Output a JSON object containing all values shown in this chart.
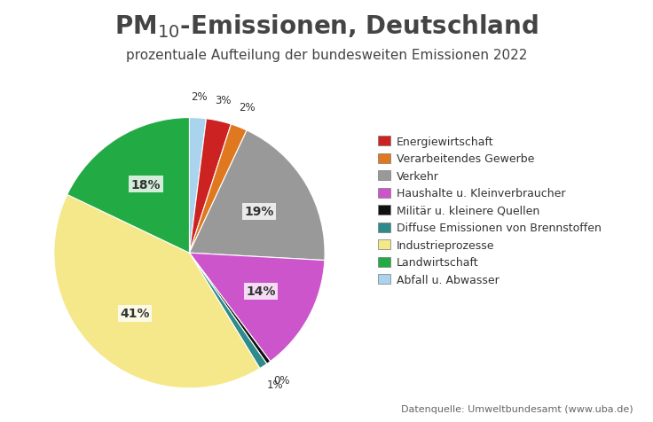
{
  "title_main": "PM$_{10}$-Emissionen, Deutschland",
  "title_sub": "prozentuale Aufteilung der bundesweiten Emissionen 2022",
  "plot_labels": [
    "Abfall u. Abwasser",
    "Energiewirtschaft",
    "Verarbeitendes Gewerbe",
    "Verkehr",
    "Haushalte u. Kleinverbraucher",
    "Militär u. kleinere Quellen",
    "Diffuse Emissionen von Brennstoffen",
    "Industrieprozesse",
    "Landwirtschaft"
  ],
  "plot_values": [
    2,
    3,
    2,
    19,
    14,
    0.5,
    1,
    41,
    18
  ],
  "display_pcts": [
    2,
    3,
    2,
    19,
    14,
    0,
    1,
    41,
    18
  ],
  "plot_colors": [
    "#aad4ee",
    "#cc2222",
    "#e07820",
    "#999999",
    "#cc55cc",
    "#111111",
    "#2e8b8b",
    "#f5e88a",
    "#22aa44"
  ],
  "legend_labels": [
    "Energiewirtschaft",
    "Verarbeitendes Gewerbe",
    "Verkehr",
    "Haushalte u. Kleinverbraucher",
    "Militär u. kleinere Quellen",
    "Diffuse Emissionen von Brennstoffen",
    "Industrieprozesse",
    "Landwirtschaft",
    "Abfall u. Abwasser"
  ],
  "legend_colors": [
    "#cc2222",
    "#e07820",
    "#999999",
    "#cc55cc",
    "#111111",
    "#2e8b8b",
    "#f5e88a",
    "#22aa44",
    "#aad4ee"
  ],
  "source_text": "Datenquelle: Umweltbundesamt (www.uba.de)",
  "background_color": "#ffffff",
  "title_color": "#444444",
  "label_color": "#333333"
}
